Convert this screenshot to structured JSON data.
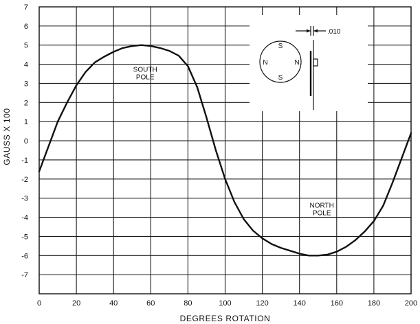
{
  "chart_data": {
    "type": "line",
    "title": "",
    "xlabel": "DEGREES ROTATION",
    "ylabel": "GAUSS X 100",
    "xlim": [
      0,
      200
    ],
    "ylim": [
      -8,
      7
    ],
    "xticks": [
      0,
      20,
      40,
      60,
      80,
      100,
      120,
      140,
      160,
      180,
      200
    ],
    "yticks": [
      7,
      6,
      5,
      4,
      3,
      2,
      1,
      0,
      -1,
      -2,
      -3,
      -4,
      -5,
      -6,
      -7
    ],
    "grid": true,
    "series": [
      {
        "x": [
          0,
          5,
          10,
          15,
          20,
          25,
          30,
          35,
          40,
          45,
          50,
          55,
          60,
          65,
          70,
          75,
          80,
          85,
          90,
          95,
          100,
          105,
          110,
          115,
          120,
          125,
          130,
          135,
          140,
          145,
          150,
          155,
          160,
          165,
          170,
          175,
          180,
          185,
          190,
          195,
          200
        ],
        "y": [
          -1.6,
          -0.3,
          1.0,
          2.0,
          2.9,
          3.6,
          4.1,
          4.4,
          4.65,
          4.85,
          4.95,
          5.0,
          4.95,
          4.85,
          4.7,
          4.45,
          3.9,
          2.8,
          1.2,
          -0.5,
          -2.0,
          -3.2,
          -4.1,
          -4.7,
          -5.1,
          -5.4,
          -5.6,
          -5.75,
          -5.9,
          -6.0,
          -6.0,
          -5.95,
          -5.8,
          -5.55,
          -5.2,
          -4.75,
          -4.2,
          -3.4,
          -2.2,
          -0.9,
          0.4
        ]
      }
    ],
    "annotations": [
      {
        "text": [
          "SOUTH",
          "POLE"
        ],
        "x": 57,
        "y": 3.6
      },
      {
        "text": [
          "NORTH",
          "POLE"
        ],
        "x": 152,
        "y": -3.5
      }
    ],
    "inset": {
      "pole_labels": {
        "top": "S",
        "bottom": "S",
        "left": "N",
        "right": "N"
      },
      "gap_label": ".010"
    }
  }
}
